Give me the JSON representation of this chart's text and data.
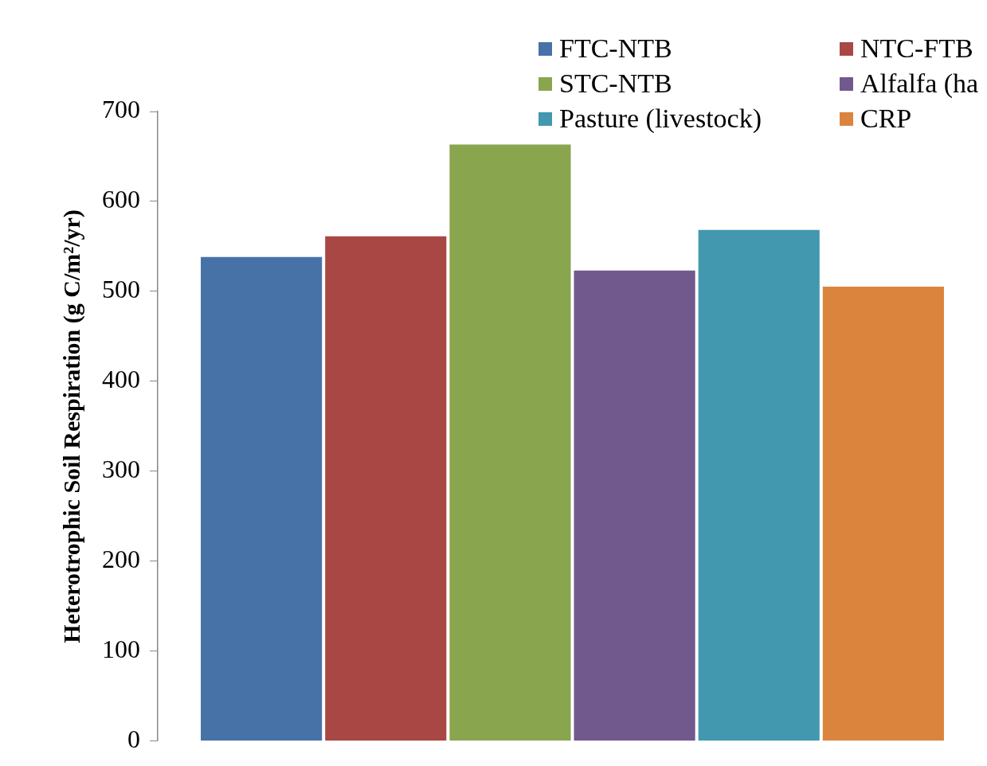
{
  "chart_data": {
    "type": "bar",
    "ylabel": "Heterotrophic Soil Respiration (g C/m²/yr)",
    "categories": [
      null
    ],
    "series": [
      {
        "name": "FTC-NTB",
        "color": "#4672a8",
        "values": [
          540
        ]
      },
      {
        "name": "NTC-FTB",
        "color": "#a94744",
        "values": [
          563
        ]
      },
      {
        "name": "STC-NTB",
        "color": "#89a54e",
        "values": [
          665
        ]
      },
      {
        "name": "Alfalfa (ha",
        "color": "#71598d",
        "values": [
          525
        ]
      },
      {
        "name": "Pasture (livestock)",
        "color": "#4198af",
        "values": [
          570
        ]
      },
      {
        "name": "CRP",
        "color": "#db843d",
        "values": [
          507
        ]
      }
    ],
    "ylim": [
      0,
      700
    ],
    "yticks": [
      0,
      100,
      200,
      300,
      400,
      500,
      600,
      700
    ],
    "grid": false,
    "legend": "top right"
  }
}
